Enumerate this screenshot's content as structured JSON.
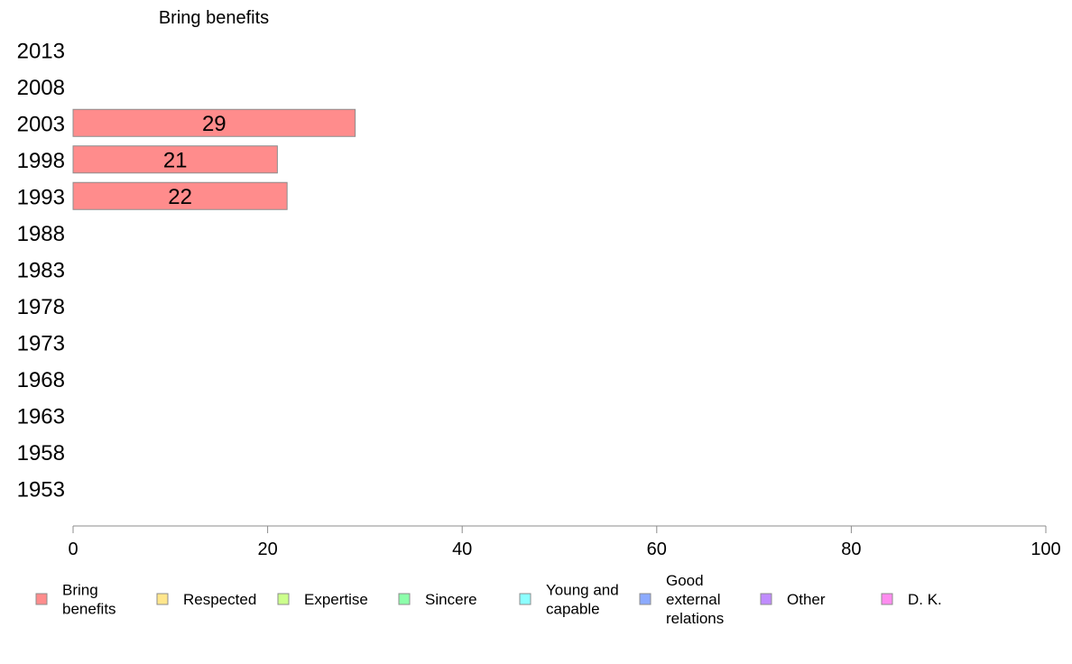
{
  "chart_data": {
    "type": "bar",
    "orientation": "horizontal",
    "title": "Bring benefits",
    "categories": [
      "2013",
      "2008",
      "2003",
      "1998",
      "1993",
      "1988",
      "1983",
      "1978",
      "1973",
      "1968",
      "1963",
      "1958",
      "1953"
    ],
    "series": [
      {
        "name": "Bring benefits",
        "color": "#ff8c8c",
        "values": [
          null,
          null,
          29,
          21,
          22,
          null,
          null,
          null,
          null,
          null,
          null,
          null,
          null
        ]
      }
    ],
    "xlim": [
      0,
      100
    ],
    "xticks": [
      0,
      20,
      40,
      60,
      80,
      100
    ],
    "grid": false,
    "legend_position": "bottom"
  },
  "legend": [
    {
      "label": [
        "Bring",
        "benefits"
      ],
      "color": "#ff8c8c"
    },
    {
      "label": [
        "Respected"
      ],
      "color": "#ffe68c"
    },
    {
      "label": [
        "Expertise"
      ],
      "color": "#ccff8c"
    },
    {
      "label": [
        "Sincere"
      ],
      "color": "#8cffaa"
    },
    {
      "label": [
        "Young and",
        "capable"
      ],
      "color": "#8cffff"
    },
    {
      "label": [
        "Good",
        "external",
        "relations"
      ],
      "color": "#8caaff"
    },
    {
      "label": [
        "Other"
      ],
      "color": "#c08cff"
    },
    {
      "label": [
        "D. K."
      ],
      "color": "#ff8cf0"
    }
  ]
}
